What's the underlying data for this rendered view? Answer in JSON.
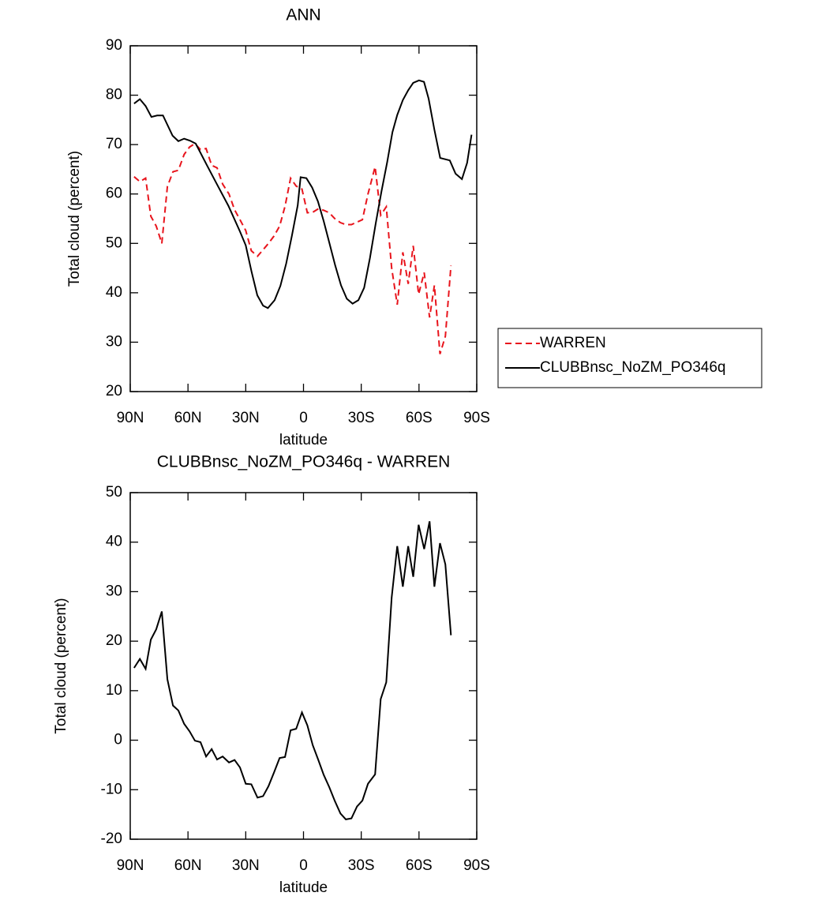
{
  "chart_data": [
    {
      "type": "line",
      "title": "ANN",
      "xlabel": "latitude",
      "ylabel": "Total cloud (percent)",
      "xlim": [
        90,
        -90
      ],
      "xticks": [
        {
          "value": 90,
          "label": "90N"
        },
        {
          "value": 60,
          "label": "60N"
        },
        {
          "value": 30,
          "label": "30N"
        },
        0,
        {
          "value": -30,
          "label": "30S"
        },
        {
          "value": -60,
          "label": "60S"
        },
        {
          "value": -90,
          "label": "90S"
        }
      ],
      "ylim": [
        20,
        90
      ],
      "yticks": [
        20,
        30,
        40,
        50,
        60,
        70,
        80,
        90
      ],
      "legend": "right",
      "series": [
        {
          "name": "WARREN",
          "color": "#e8141c",
          "style": "dashed",
          "x": [
            88,
            85,
            82,
            79.3,
            76.5,
            73.6,
            70.7,
            67.8,
            65,
            62,
            59.2,
            56.4,
            53.5,
            50.6,
            47.7,
            44.9,
            42,
            38.7,
            35.8,
            33,
            30,
            27.1,
            23.9,
            21,
            18.2,
            15.3,
            12.4,
            9.6,
            6.7,
            3.8,
            0.8,
            -2,
            -4.8,
            -7.7,
            -10.5,
            -13.4,
            -16.3,
            -19.2,
            -22,
            -24.9,
            -27.8,
            -30.6,
            -33.5,
            -37.2,
            -40.1,
            -43,
            -45.8,
            -48.7,
            -51.6,
            -54.4,
            -57,
            -59.8,
            -62.7,
            -65.5,
            -68,
            -70.9,
            -73.7,
            -76.6
          ],
          "values": [
            63.5,
            62.5,
            63.2,
            55.5,
            53.5,
            50,
            61.5,
            64.5,
            64.8,
            68,
            69.5,
            70.2,
            69,
            69.2,
            65.8,
            65.3,
            62,
            60,
            56.8,
            54.8,
            52.6,
            48.5,
            47.4,
            48.7,
            50,
            51.5,
            53.5,
            57.5,
            63.2,
            61.6,
            61,
            56.2,
            56.3,
            57,
            56.7,
            56.2,
            55,
            54.2,
            53.8,
            53.8,
            54.3,
            54.8,
            60,
            65.5,
            55.7,
            57.4,
            45,
            37.6,
            48.2,
            41.8,
            49.5,
            39.7,
            44.1,
            35,
            41.5,
            27.6,
            31.2,
            45.5
          ]
        },
        {
          "name": "CLUBBnsc_NoZM_PO346q",
          "color": "#000000",
          "style": "solid",
          "x": [
            88,
            85,
            82,
            79,
            76,
            73,
            68,
            65,
            62,
            59,
            56,
            50,
            45,
            39,
            33,
            30,
            27,
            24,
            21,
            18.5,
            15,
            12,
            9,
            6,
            3,
            1.5,
            -1.5,
            -4.5,
            -7.5,
            -10.5,
            -13.5,
            -16.5,
            -19.5,
            -22.5,
            -25.5,
            -28.5,
            -31.5,
            -34.5,
            -37.5,
            -40.5,
            -43.5,
            -46.2,
            -48.7,
            -51.6,
            -54.4,
            -57,
            -60,
            -62.6,
            -65,
            -68,
            -71,
            -76,
            -79,
            -82.3,
            -85,
            -87.3
          ],
          "values": [
            78.3,
            79.2,
            77.8,
            75.6,
            75.9,
            75.9,
            71.8,
            70.7,
            71.2,
            70.8,
            70.2,
            65.7,
            62,
            57.6,
            52.4,
            49.6,
            44.3,
            39.5,
            37.4,
            36.9,
            38.5,
            41.4,
            45.9,
            51.6,
            57.7,
            63.4,
            63.2,
            61.3,
            58.5,
            54.5,
            50,
            45.5,
            41.5,
            38.8,
            37.8,
            38.5,
            41,
            47,
            54,
            60.5,
            66.5,
            72.5,
            76,
            79,
            81,
            82.5,
            83,
            82.7,
            79.3,
            73,
            67.3,
            66.8,
            64.1,
            63,
            66.3,
            72
          ]
        }
      ]
    },
    {
      "type": "line",
      "title": "CLUBBnsc_NoZM_PO346q - WARREN",
      "xlabel": "latitude",
      "ylabel": "Total cloud (percent)",
      "xlim": [
        90,
        -90
      ],
      "xticks": [
        {
          "value": 90,
          "label": "90N"
        },
        {
          "value": 60,
          "label": "60N"
        },
        {
          "value": 30,
          "label": "30N"
        },
        0,
        {
          "value": -30,
          "label": "30S"
        },
        {
          "value": -60,
          "label": "60S"
        },
        {
          "value": -90,
          "label": "90S"
        }
      ],
      "ylim": [
        -20,
        50
      ],
      "yticks": [
        -20,
        -10,
        0,
        10,
        20,
        30,
        40,
        50
      ],
      "color": "#000000",
      "x": [
        88,
        85,
        82,
        79.3,
        76.5,
        73.6,
        70.7,
        67.8,
        65,
        62,
        59.2,
        56.4,
        53.5,
        50.6,
        47.7,
        44.9,
        42,
        38.7,
        35.8,
        33,
        30,
        27.1,
        23.9,
        21,
        18.2,
        15.3,
        12.4,
        9.6,
        6.7,
        3.8,
        0.8,
        -2,
        -4.8,
        -7.7,
        -10.5,
        -13.4,
        -16.3,
        -19.2,
        -22,
        -24.9,
        -27.8,
        -30.6,
        -33.5,
        -37.2,
        -40.1,
        -43,
        -45.8,
        -48.7,
        -51.6,
        -54.4,
        -57,
        -59.8,
        -62.7,
        -65.5,
        -68,
        -70.9,
        -73.7,
        -76.6
      ],
      "values": [
        14.6,
        16.4,
        14.4,
        20.3,
        22.4,
        26,
        12.3,
        7,
        6,
        3.3,
        1.8,
        -0.1,
        -0.4,
        -3.3,
        -1.8,
        -3.9,
        -3.3,
        -4.5,
        -4,
        -5.5,
        -8.8,
        -8.9,
        -11.6,
        -11.3,
        -9.3,
        -6.5,
        -3.6,
        -3.4,
        2,
        2.3,
        5.6,
        3,
        -1,
        -4,
        -7,
        -9.5,
        -12.3,
        -14.8,
        -16,
        -15.8,
        -13.4,
        -12.2,
        -8.8,
        -6.9,
        8.3,
        11.7,
        28.8,
        39.2,
        31,
        39.2,
        33,
        43.5,
        38.6,
        44.2,
        31,
        39.8,
        35.5,
        21.2
      ]
    }
  ]
}
